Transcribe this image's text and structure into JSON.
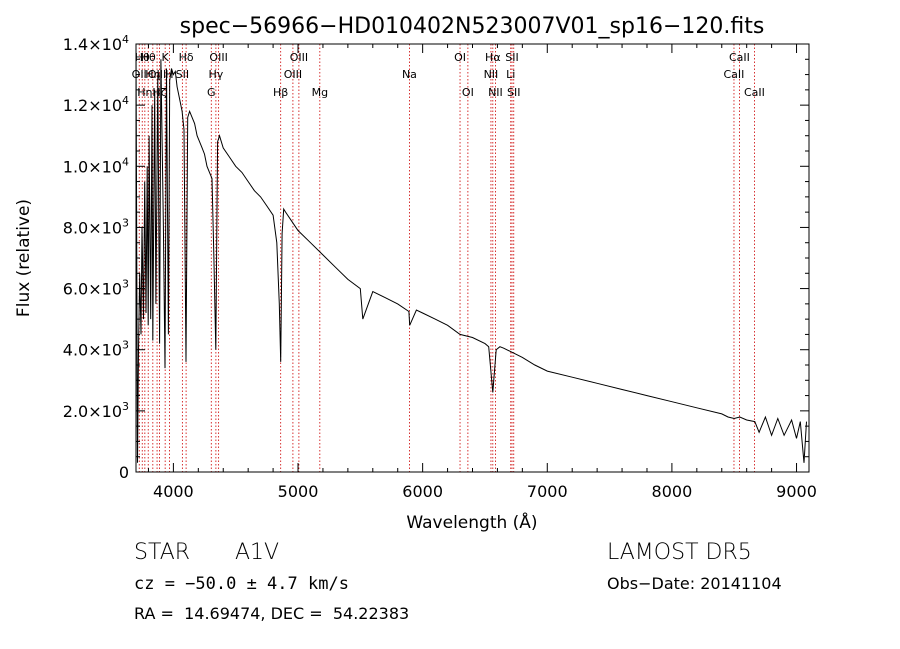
{
  "chart_data": {
    "type": "line",
    "title": "spec−56966−HD010402N523007V01_sp16−120.fits",
    "xlabel": "Wavelength (Å)",
    "ylabel": "Flux (relative)",
    "xlim": [
      3700,
      9100
    ],
    "ylim": [
      0,
      14000
    ],
    "x_ticks": [
      4000,
      5000,
      6000,
      7000,
      8000,
      9000
    ],
    "x_tick_labels": [
      "4000",
      "5000",
      "6000",
      "7000",
      "8000",
      "9000"
    ],
    "y_ticks": [
      0,
      2000,
      4000,
      6000,
      8000,
      10000,
      12000,
      14000
    ],
    "y_tick_labels": [
      {
        "mantissa": "0",
        "exp": ""
      },
      {
        "mantissa": "2.0×10",
        "exp": "3"
      },
      {
        "mantissa": "4.0×10",
        "exp": "3"
      },
      {
        "mantissa": "6.0×10",
        "exp": "3"
      },
      {
        "mantissa": "8.0×10",
        "exp": "3"
      },
      {
        "mantissa": "1.0×10",
        "exp": "4"
      },
      {
        "mantissa": "1.2×10",
        "exp": "4"
      },
      {
        "mantissa": "1.4×10",
        "exp": "4"
      }
    ],
    "series": [
      {
        "line_color": "#000000",
        "x": [
          3700,
          3712,
          3720,
          3730,
          3740,
          3748,
          3760,
          3770,
          3780,
          3790,
          3798,
          3805,
          3818,
          3828,
          3835,
          3850,
          3860,
          3875,
          3889,
          3900,
          3920,
          3933,
          3945,
          3960,
          3970,
          3985,
          4000,
          4015,
          4030,
          4050,
          4070,
          4085,
          4101,
          4115,
          4130,
          4150,
          4170,
          4190,
          4210,
          4230,
          4250,
          4270,
          4290,
          4310,
          4325,
          4340,
          4355,
          4370,
          4400,
          4450,
          4500,
          4550,
          4600,
          4650,
          4700,
          4750,
          4800,
          4830,
          4850,
          4861,
          4872,
          4885,
          4900,
          4950,
          5000,
          5100,
          5200,
          5300,
          5400,
          5500,
          5520,
          5600,
          5700,
          5800,
          5890,
          5896,
          5950,
          6000,
          6100,
          6200,
          6300,
          6400,
          6500,
          6530,
          6563,
          6590,
          6620,
          6650,
          6700,
          6800,
          6900,
          7000,
          7200,
          7400,
          7600,
          7800,
          8000,
          8200,
          8400,
          8450,
          8500,
          8545,
          8600,
          8665,
          8700,
          8750,
          8800,
          8850,
          8900,
          8960,
          9000,
          9030,
          9060,
          9080
        ],
        "y": [
          14000,
          300,
          4000,
          6500,
          4500,
          8000,
          5000,
          9500,
          5200,
          10000,
          4800,
          11000,
          5000,
          12000,
          4300,
          12500,
          5500,
          13000,
          4200,
          13500,
          8000,
          3400,
          13200,
          4500,
          12800,
          13200,
          13000,
          13100,
          12600,
          12200,
          11800,
          11200,
          3600,
          11600,
          11800,
          11600,
          11400,
          11000,
          10800,
          10600,
          10400,
          10000,
          9800,
          9600,
          7000,
          4000,
          10800,
          11000,
          10600,
          10300,
          10000,
          9800,
          9500,
          9200,
          9000,
          8700,
          8400,
          7500,
          5500,
          3600,
          7800,
          8600,
          8500,
          8200,
          7900,
          7500,
          7100,
          6700,
          6300,
          6000,
          5000,
          5900,
          5700,
          5500,
          5250,
          4800,
          5300,
          5200,
          5000,
          4800,
          4500,
          4400,
          4200,
          4100,
          2600,
          4000,
          4100,
          4050,
          3950,
          3750,
          3500,
          3300,
          3100,
          2900,
          2700,
          2500,
          2300,
          2100,
          1900,
          1800,
          1750,
          1800,
          1700,
          1650,
          1300,
          1800,
          1200,
          1750,
          1200,
          1700,
          1100,
          1650,
          300,
          1650
        ]
      }
    ],
    "line_labels": [
      {
        "x": 3726,
        "label": "OII",
        "row": 1
      },
      {
        "x": 3750,
        "label": "Hθ",
        "row": 0
      },
      {
        "x": 3771,
        "label": "Hη",
        "row": 2
      },
      {
        "x": 3798,
        "label": "Hθ",
        "row": 0
      },
      {
        "x": 3835,
        "label": "Hη",
        "row": 1
      },
      {
        "x": 3869,
        "label": "OIII",
        "row": 1
      },
      {
        "x": 3889,
        "label": "Hζ",
        "row": 2
      },
      {
        "x": 3934,
        "label": "K",
        "row": 0
      },
      {
        "x": 3968,
        "label": "H",
        "row": 1
      },
      {
        "x": 4072,
        "label": "SII",
        "row": 1
      },
      {
        "x": 4102,
        "label": "Hδ",
        "row": 0
      },
      {
        "x": 4304,
        "label": "G",
        "row": 2
      },
      {
        "x": 4341,
        "label": "Hγ",
        "row": 1
      },
      {
        "x": 4363,
        "label": "OIII",
        "row": 0
      },
      {
        "x": 4861,
        "label": "Hβ",
        "row": 2
      },
      {
        "x": 4959,
        "label": "OIII",
        "row": 1
      },
      {
        "x": 5007,
        "label": "OIII",
        "row": 0
      },
      {
        "x": 5175,
        "label": "Mg",
        "row": 2
      },
      {
        "x": 5894,
        "label": "Na",
        "row": 1
      },
      {
        "x": 6300,
        "label": "OI",
        "row": 0
      },
      {
        "x": 6363,
        "label": "OI",
        "row": 2
      },
      {
        "x": 6548,
        "label": "NII",
        "row": 1
      },
      {
        "x": 6563,
        "label": "Hα",
        "row": 0
      },
      {
        "x": 6584,
        "label": "NII",
        "row": 2
      },
      {
        "x": 6707,
        "label": "Li",
        "row": 1
      },
      {
        "x": 6717,
        "label": "SII",
        "row": 0
      },
      {
        "x": 6731,
        "label": "SII",
        "row": 2
      },
      {
        "x": 8498,
        "label": "CaII",
        "row": 1
      },
      {
        "x": 8542,
        "label": "CaII",
        "row": 0
      },
      {
        "x": 8662,
        "label": "CaII",
        "row": 2
      }
    ],
    "line_marker_color": "#cc0000"
  },
  "info": {
    "object_class": "STAR",
    "subclass": "A1V",
    "redshift": "cz = −50.0 ± 4.7 km/s",
    "coords": "RA =  14.69474, DEC =  54.22383",
    "survey": "LAMOST DR5",
    "obs_date": "Obs−Date: 20141104"
  }
}
